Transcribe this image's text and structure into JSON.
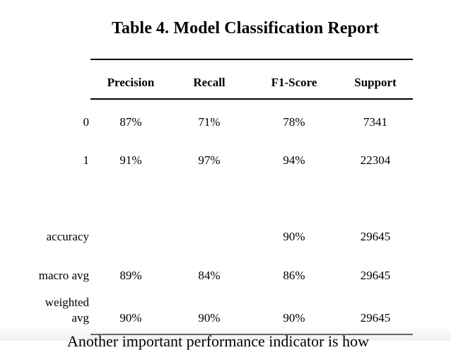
{
  "title": "Table 4. Model Classification Report",
  "columns": [
    "Precision",
    "Recall",
    "F1-Score",
    "Support"
  ],
  "rows": [
    {
      "label": "0",
      "precision": "87%",
      "recall": "71%",
      "f1": "78%",
      "support": "7341"
    },
    {
      "label": "1",
      "precision": "91%",
      "recall": "97%",
      "f1": "94%",
      "support": "22304"
    },
    {
      "label": "accuracy",
      "precision": "",
      "recall": "",
      "f1": "90%",
      "support": "29645"
    },
    {
      "label": "macro avg",
      "precision": "89%",
      "recall": "84%",
      "f1": "86%",
      "support": "29645"
    },
    {
      "label_line1": "weighted",
      "label_line2": "avg",
      "precision": "90%",
      "recall": "90%",
      "f1": "90%",
      "support": "29645"
    }
  ],
  "cut_off_text": "Another important performance indicator is how"
}
